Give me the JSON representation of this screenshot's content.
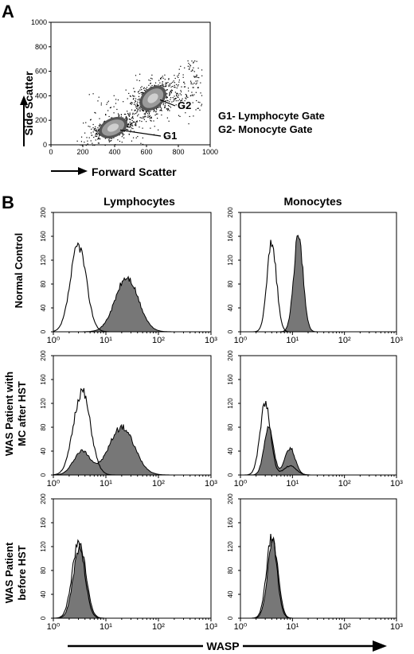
{
  "panel_a": {
    "letter": "A",
    "ylabel": "Side Scatter",
    "xlabel": "Forward Scatter",
    "legend": [
      "G1- Lymphocyte Gate",
      "G2- Monocyte Gate"
    ],
    "gate_labels": [
      "G1",
      "G2"
    ]
  },
  "panel_b": {
    "letter": "B",
    "col_titles": [
      "Lymphocytes",
      "Monocytes"
    ],
    "row_titles": [
      [
        "Normal Control"
      ],
      [
        "WAS Patient with",
        "MC after HST"
      ],
      [
        "WAS Patient",
        "before HST"
      ]
    ],
    "xlabel": "WASP"
  },
  "chart_data": [
    {
      "type": "scatter",
      "title": "",
      "xlabel": "Forward Scatter",
      "ylabel": "Side Scatter",
      "xlim": [
        0,
        1000
      ],
      "ylim": [
        0,
        1000
      ],
      "xticks": [
        "0",
        "200",
        "400",
        "600",
        "800",
        "1000"
      ],
      "yticks": [
        "0",
        "200",
        "400",
        "600",
        "800",
        "1000"
      ],
      "clusters": [
        {
          "name": "G1",
          "label": "G1- Lymphocyte Gate",
          "center": [
            390,
            140
          ],
          "spread": [
            70,
            40
          ],
          "n": 520
        },
        {
          "name": "G2",
          "label": "G2- Monocyte Gate",
          "center": [
            640,
            380
          ],
          "spread": [
            70,
            75
          ],
          "n": 460
        }
      ],
      "background_points": 320
    },
    {
      "type": "area",
      "row": "Normal Control",
      "column": "Lymphocytes",
      "xscale": "log",
      "xlim": [
        1,
        1000
      ],
      "ylim": [
        0,
        200
      ],
      "xticks": [
        "10⁰",
        "10¹",
        "10²",
        "10³"
      ],
      "yticks": [
        "0",
        "40",
        "80",
        "120",
        "160",
        "200"
      ],
      "series": [
        {
          "style": "open",
          "peaks": [
            {
              "x": 3,
              "height": 145,
              "width": 0.15
            }
          ]
        },
        {
          "style": "filled",
          "peaks": [
            {
              "x": 25,
              "height": 90,
              "width": 0.22
            }
          ]
        }
      ]
    },
    {
      "type": "area",
      "row": "Normal Control",
      "column": "Monocytes",
      "xscale": "log",
      "xlim": [
        1,
        1000
      ],
      "ylim": [
        0,
        200
      ],
      "xticks": [
        "10⁰",
        "10¹",
        "10²",
        "10³"
      ],
      "yticks": [
        "0",
        "40",
        "80",
        "120",
        "160",
        "200"
      ],
      "series": [
        {
          "style": "open",
          "peaks": [
            {
              "x": 4,
              "height": 150,
              "width": 0.09
            }
          ]
        },
        {
          "style": "filled",
          "peaks": [
            {
              "x": 13,
              "height": 160,
              "width": 0.09
            }
          ]
        }
      ]
    },
    {
      "type": "area",
      "row": "WAS Patient with MC after HST",
      "column": "Lymphocytes",
      "xscale": "log",
      "xlim": [
        1,
        1000
      ],
      "ylim": [
        0,
        200
      ],
      "xticks": [
        "10⁰",
        "10¹",
        "10²",
        "10³"
      ],
      "yticks": [
        "0",
        "40",
        "80",
        "120",
        "160",
        "200"
      ],
      "series": [
        {
          "style": "open",
          "peaks": [
            {
              "x": 3.5,
              "height": 140,
              "width": 0.16
            }
          ]
        },
        {
          "style": "filled",
          "peaks": [
            {
              "x": 3.5,
              "height": 40,
              "width": 0.16
            },
            {
              "x": 20,
              "height": 80,
              "width": 0.24
            }
          ]
        }
      ]
    },
    {
      "type": "area",
      "row": "WAS Patient with MC after HST",
      "column": "Monocytes",
      "xscale": "log",
      "xlim": [
        1,
        1000
      ],
      "ylim": [
        0,
        200
      ],
      "xticks": [
        "10⁰",
        "10¹",
        "10²",
        "10³"
      ],
      "yticks": [
        "0",
        "40",
        "80",
        "120",
        "160",
        "200"
      ],
      "series": [
        {
          "style": "open",
          "peaks": [
            {
              "x": 3,
              "height": 120,
              "width": 0.1
            },
            {
              "x": 9,
              "height": 15,
              "width": 0.12
            }
          ]
        },
        {
          "style": "filled",
          "peaks": [
            {
              "x": 3.5,
              "height": 80,
              "width": 0.09
            },
            {
              "x": 9,
              "height": 45,
              "width": 0.1
            }
          ]
        }
      ]
    },
    {
      "type": "area",
      "row": "WAS Patient before HST",
      "column": "Lymphocytes",
      "xscale": "log",
      "xlim": [
        1,
        1000
      ],
      "ylim": [
        0,
        200
      ],
      "xticks": [
        "10⁰",
        "10¹",
        "10²",
        "10³"
      ],
      "yticks": [
        "0",
        "40",
        "80",
        "120",
        "160",
        "200"
      ],
      "series": [
        {
          "style": "open",
          "peaks": [
            {
              "x": 3,
              "height": 125,
              "width": 0.12
            }
          ]
        },
        {
          "style": "filled",
          "peaks": [
            {
              "x": 3.2,
              "height": 120,
              "width": 0.12
            }
          ]
        }
      ]
    },
    {
      "type": "area",
      "row": "WAS Patient before HST",
      "column": "Monocytes",
      "xscale": "log",
      "xlim": [
        1,
        1000
      ],
      "ylim": [
        0,
        200
      ],
      "xticks": [
        "10⁰",
        "10¹",
        "10²",
        "10³"
      ],
      "yticks": [
        "0",
        "40",
        "80",
        "120",
        "160",
        "200"
      ],
      "series": [
        {
          "style": "open",
          "peaks": [
            {
              "x": 4,
              "height": 135,
              "width": 0.1
            }
          ]
        },
        {
          "style": "filled",
          "peaks": [
            {
              "x": 4.2,
              "height": 130,
              "width": 0.1
            }
          ]
        }
      ]
    }
  ]
}
